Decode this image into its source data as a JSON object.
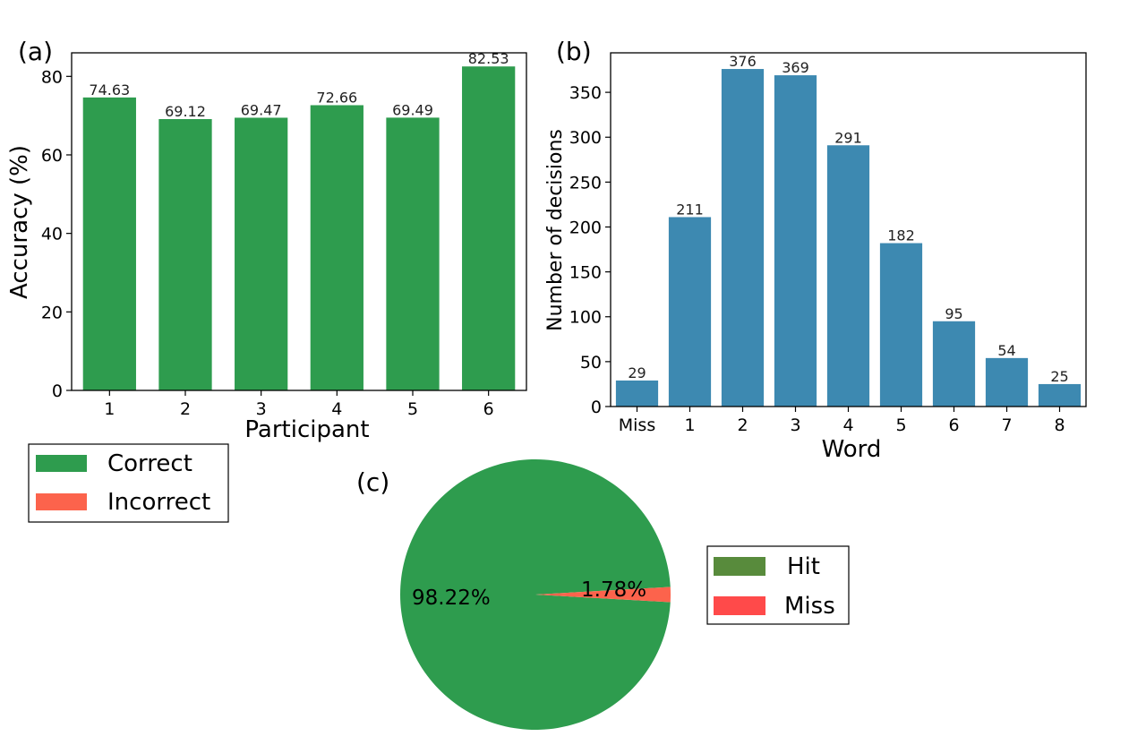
{
  "panel_labels": {
    "a": "(a)",
    "b": "(b)",
    "c": "(c)"
  },
  "colors": {
    "green": "#2e9c4e",
    "red": "#fc634c",
    "blue": "#3d89b1",
    "hit_legend": "#588b3c",
    "miss_legend": "#ff4a4a"
  },
  "legends": {
    "a": {
      "correct": "Correct",
      "incorrect": "Incorrect"
    },
    "c": {
      "hit": "Hit",
      "miss": "Miss"
    }
  },
  "chart_data": [
    {
      "type": "bar",
      "panel": "(a)",
      "categories": [
        "1",
        "2",
        "3",
        "4",
        "5",
        "6"
      ],
      "values": [
        74.63,
        69.12,
        69.47,
        72.66,
        69.49,
        82.53
      ],
      "value_labels": [
        "74.63",
        "69.12",
        "69.47",
        "72.66",
        "69.49",
        "82.53"
      ],
      "xlabel": "Participant",
      "ylabel": "Accuracy (%)",
      "ylim": [
        0,
        86
      ],
      "yticks": [
        0,
        20,
        40,
        60,
        80
      ],
      "legend": [
        "Correct",
        "Incorrect"
      ],
      "grid": false
    },
    {
      "type": "bar",
      "panel": "(b)",
      "categories": [
        "Miss",
        "1",
        "2",
        "3",
        "4",
        "5",
        "6",
        "7",
        "8"
      ],
      "values": [
        29,
        211,
        376,
        369,
        291,
        182,
        95,
        54,
        25
      ],
      "value_labels": [
        "29",
        "211",
        "376",
        "369",
        "291",
        "182",
        "95",
        "54",
        "25"
      ],
      "xlabel": "Word",
      "ylabel": "Number of decisions",
      "ylim": [
        0,
        394
      ],
      "yticks": [
        0,
        50,
        100,
        150,
        200,
        250,
        300,
        350
      ],
      "grid": false
    },
    {
      "type": "pie",
      "panel": "(c)",
      "labels": [
        "Hit",
        "Miss"
      ],
      "values": [
        98.22,
        1.78
      ],
      "value_labels": [
        "98.22%",
        "1.78%"
      ],
      "legend": [
        "Hit",
        "Miss"
      ]
    }
  ]
}
